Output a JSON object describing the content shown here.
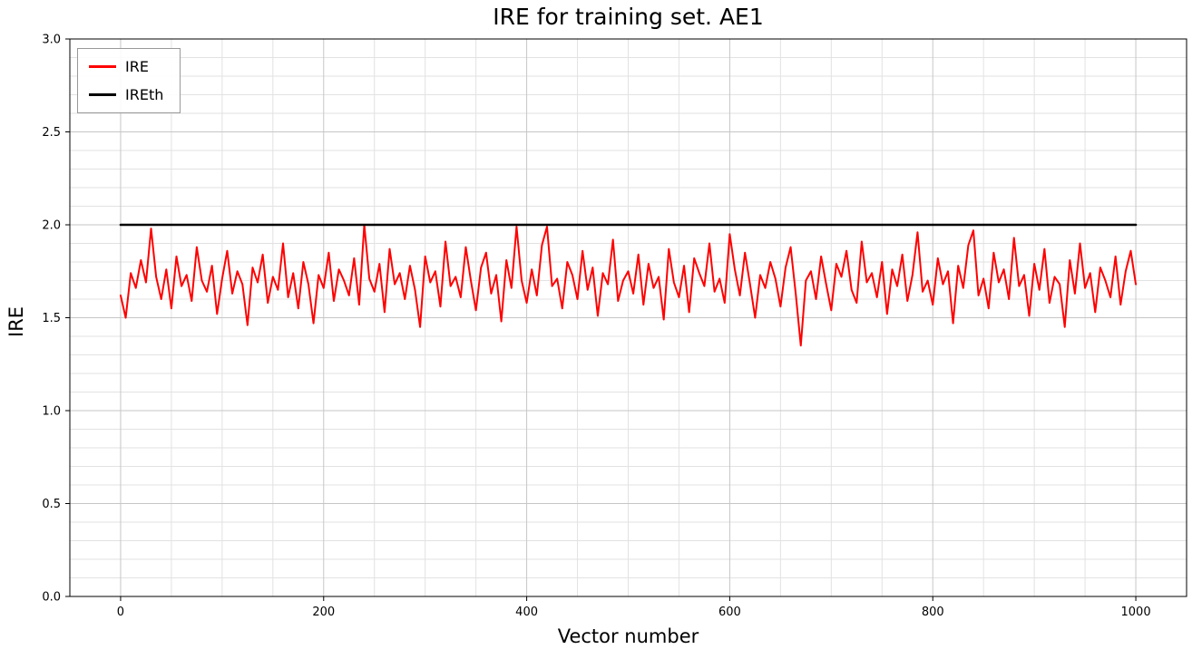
{
  "chart_data": {
    "type": "line",
    "title": "IRE for training set. AE1",
    "xlabel": "Vector number",
    "ylabel": "IRE",
    "xlim": [
      -50,
      1050
    ],
    "ylim": [
      0,
      3
    ],
    "xticks": [
      0,
      200,
      400,
      600,
      800,
      1000
    ],
    "xtick_labels": [
      "0",
      "200",
      "400",
      "600",
      "800",
      "1000"
    ],
    "yticks": [
      0,
      0.5,
      1,
      1.5,
      2,
      2.5,
      3
    ],
    "ytick_labels": [
      "0.0",
      "0.5",
      "1.0",
      "1.5",
      "2.0",
      "2.5",
      "3.0"
    ],
    "grid": true,
    "minor_grid": true,
    "x_minor_step": 50,
    "y_minor_step": 0.1,
    "legend": {
      "position": "upper left",
      "entries": [
        {
          "label": "IRE",
          "color": "#ff0000"
        },
        {
          "label": "IREth",
          "color": "#000000"
        }
      ]
    },
    "series": [
      {
        "name": "IRE",
        "color": "#ff0000",
        "line_width": 2,
        "x_start": 0,
        "x_step": 5,
        "values": [
          1.62,
          1.5,
          1.74,
          1.66,
          1.81,
          1.69,
          1.98,
          1.72,
          1.6,
          1.76,
          1.55,
          1.83,
          1.67,
          1.73,
          1.59,
          1.88,
          1.7,
          1.64,
          1.78,
          1.52,
          1.71,
          1.86,
          1.63,
          1.75,
          1.68,
          1.46,
          1.77,
          1.69,
          1.84,
          1.58,
          1.72,
          1.65,
          1.9,
          1.61,
          1.74,
          1.55,
          1.8,
          1.68,
          1.47,
          1.73,
          1.66,
          1.85,
          1.59,
          1.76,
          1.7,
          1.62,
          1.82,
          1.57,
          2.0,
          1.71,
          1.64,
          1.79,
          1.53,
          1.87,
          1.68,
          1.74,
          1.6,
          1.78,
          1.65,
          1.45,
          1.83,
          1.69,
          1.75,
          1.56,
          1.91,
          1.67,
          1.72,
          1.61,
          1.88,
          1.7,
          1.54,
          1.77,
          1.85,
          1.63,
          1.73,
          1.48,
          1.81,
          1.66,
          1.99,
          1.7,
          1.58,
          1.76,
          1.62,
          1.89,
          1.99,
          1.67,
          1.71,
          1.55,
          1.8,
          1.73,
          1.6,
          1.86,
          1.65,
          1.77,
          1.51,
          1.74,
          1.68,
          1.92,
          1.59,
          1.7,
          1.75,
          1.63,
          1.84,
          1.57,
          1.79,
          1.66,
          1.72,
          1.49,
          1.87,
          1.69,
          1.61,
          1.78,
          1.53,
          1.82,
          1.74,
          1.67,
          1.9,
          1.64,
          1.71,
          1.58,
          1.95,
          1.76,
          1.62,
          1.85,
          1.68,
          1.5,
          1.73,
          1.66,
          1.8,
          1.71,
          1.56,
          1.77,
          1.88,
          1.63,
          1.35,
          1.7,
          1.75,
          1.6,
          1.83,
          1.68,
          1.54,
          1.79,
          1.72,
          1.86,
          1.65,
          1.58,
          1.91,
          1.69,
          1.74,
          1.61,
          1.8,
          1.52,
          1.76,
          1.67,
          1.84,
          1.59,
          1.73,
          1.96,
          1.64,
          1.7,
          1.57,
          1.82,
          1.68,
          1.75,
          1.47,
          1.78,
          1.66,
          1.89,
          1.97,
          1.62,
          1.71,
          1.55,
          1.85,
          1.69,
          1.76,
          1.6,
          1.93,
          1.67,
          1.73,
          1.51,
          1.79,
          1.65,
          1.87,
          1.58,
          1.72,
          1.68,
          1.45,
          1.81,
          1.63,
          1.9,
          1.66,
          1.74,
          1.53,
          1.77,
          1.7,
          1.61,
          1.83,
          1.57,
          1.75,
          1.86,
          1.68
        ]
      },
      {
        "name": "IREth",
        "color": "#000000",
        "line_width": 2.5,
        "x": [
          0,
          1000
        ],
        "values": [
          2.0,
          2.0
        ]
      }
    ]
  },
  "colors": {
    "background": "#ffffff",
    "axis": "#000000",
    "grid_major": "#c6c6c6",
    "grid_minor": "#e2e2e2",
    "tick_label": "#000000"
  }
}
